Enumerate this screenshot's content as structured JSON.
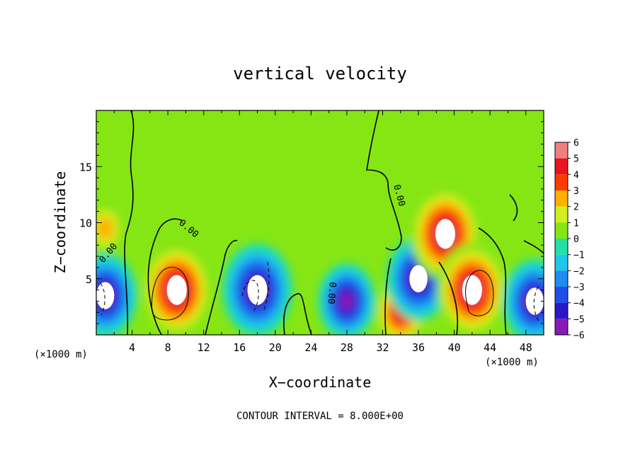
{
  "chart_data": {
    "type": "heatmap",
    "title": "vertical velocity",
    "xlabel": "X−coordinate",
    "ylabel": "Z−coordinate",
    "x_unit_left": "(×1000 m)",
    "x_unit_right": "(×1000 m)",
    "footer": "CONTOUR INTERVAL = 8.000E+00",
    "xlim": [
      0,
      50
    ],
    "ylim": [
      0,
      20
    ],
    "x_ticks": [
      4,
      8,
      12,
      16,
      20,
      24,
      28,
      32,
      36,
      40,
      44,
      48
    ],
    "x_tick_labels": [
      "4",
      "8",
      "12",
      "16",
      "20",
      "24",
      "28",
      "32",
      "36",
      "40",
      "44",
      "48"
    ],
    "y_ticks": [
      5,
      10,
      15
    ],
    "y_tick_labels": [
      "5",
      "10",
      "15"
    ],
    "colorbar": {
      "min": -6,
      "max": 6,
      "ticks": [
        6,
        5,
        4,
        3,
        2,
        1,
        0,
        -1,
        -2,
        -3,
        -4,
        -5,
        -6
      ],
      "tick_labels": [
        "6",
        "5",
        "4",
        "3",
        "2",
        "1",
        "0",
        "−1",
        "−2",
        "−3",
        "−4",
        "−5",
        "−6"
      ]
    },
    "contour_labels": [
      "0.00",
      "0.00",
      "0.00",
      "0.00"
    ],
    "features": [
      {
        "sign": "up",
        "x": 9,
        "z": 4,
        "peak": 8
      },
      {
        "sign": "down",
        "x": 18,
        "z": 4,
        "peak": -8
      },
      {
        "sign": "down",
        "x": 1,
        "z": 3.5,
        "peak": -7
      },
      {
        "sign": "up",
        "x": 1,
        "z": 9.5,
        "peak": 3
      },
      {
        "sign": "down",
        "x": 28,
        "z": 3,
        "peak": -6
      },
      {
        "sign": "up",
        "x": 34,
        "z": 2,
        "peak": 5
      },
      {
        "sign": "down",
        "x": 36,
        "z": 5,
        "peak": -7
      },
      {
        "sign": "up",
        "x": 39,
        "z": 9,
        "peak": 8
      },
      {
        "sign": "up",
        "x": 42,
        "z": 4,
        "peak": 8
      },
      {
        "sign": "down",
        "x": 49,
        "z": 3,
        "peak": -7
      }
    ],
    "colors": {
      "c_-6": "#8a1ab5",
      "c_-5": "#2a18c8",
      "c_-4": "#1f4fe8",
      "c_-3": "#1e8cf0",
      "c_-2": "#1ec8e6",
      "c_-1": "#24e0a4",
      "c_0": "#4ae21c",
      "c_1": "#86e614",
      "c_2": "#d2ee1e",
      "c_3": "#ffb000",
      "c_4": "#fa3c00",
      "c_5": "#e8141e",
      "c_6": "#f08080"
    }
  }
}
